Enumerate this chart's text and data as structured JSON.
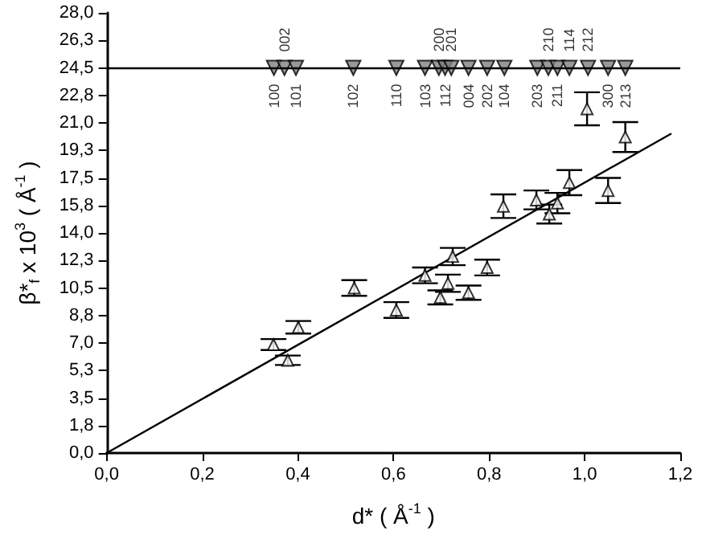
{
  "chart_data": {
    "type": "scatter",
    "xlabel": "d* ( Å$^{-1}$ )",
    "ylabel": "β*$_{f}$ x 10$^{3}$ ( Å$^{-1}$ )",
    "xlim": [
      0,
      1.2
    ],
    "xticks": [
      {
        "value": 0,
        "label": "0,0"
      },
      {
        "value": 0.2,
        "label": "0,2"
      },
      {
        "value": 0.4,
        "label": "0,4"
      },
      {
        "value": 0.6,
        "label": "0,6"
      },
      {
        "value": 0.8,
        "label": "0,8"
      },
      {
        "value": 1.0,
        "label": "1,0"
      },
      {
        "value": 1.2,
        "label": "1,2"
      }
    ],
    "ylim": [
      0,
      28
    ],
    "yticks": [
      {
        "value": 0,
        "label": "0,0"
      },
      {
        "value": 1.75,
        "label": "1,8"
      },
      {
        "value": 3.5,
        "label": "3,5"
      },
      {
        "value": 5.25,
        "label": "5,3"
      },
      {
        "value": 7,
        "label": "7,0"
      },
      {
        "value": 8.75,
        "label": "8,8"
      },
      {
        "value": 10.5,
        "label": "10,5"
      },
      {
        "value": 12.25,
        "label": "12,3"
      },
      {
        "value": 14,
        "label": "14,0"
      },
      {
        "value": 15.75,
        "label": "15,8"
      },
      {
        "value": 17.5,
        "label": "17,5"
      },
      {
        "value": 19.25,
        "label": "19,3"
      },
      {
        "value": 21,
        "label": "21,0"
      },
      {
        "value": 22.75,
        "label": "22,8"
      },
      {
        "value": 24.5,
        "label": "24,5"
      },
      {
        "value": 26.25,
        "label": "26,3"
      },
      {
        "value": 28,
        "label": "28,0"
      }
    ],
    "grid": false,
    "ref_lines": [
      {
        "axis": "y",
        "value": 24.5,
        "color": "#000000"
      }
    ],
    "annotations": [
      {
        "text": "100",
        "x": 0.35,
        "y": 24.5
      },
      {
        "text": "002",
        "x": 0.372,
        "y": 24.5
      },
      {
        "text": "101",
        "x": 0.396,
        "y": 24.5
      },
      {
        "text": "102",
        "x": 0.516,
        "y": 24.5
      },
      {
        "text": "110",
        "x": 0.606,
        "y": 24.5
      },
      {
        "text": "103",
        "x": 0.666,
        "y": 24.5
      },
      {
        "text": "200",
        "x": 0.695,
        "y": 24.5
      },
      {
        "text": "112",
        "x": 0.708,
        "y": 24.5
      },
      {
        "text": "201",
        "x": 0.721,
        "y": 24.5
      },
      {
        "text": "004",
        "x": 0.757,
        "y": 24.5
      },
      {
        "text": "202",
        "x": 0.796,
        "y": 24.5
      },
      {
        "text": "104",
        "x": 0.832,
        "y": 24.5
      },
      {
        "text": "203",
        "x": 0.901,
        "y": 24.5
      },
      {
        "text": "210",
        "x": 0.924,
        "y": 24.5
      },
      {
        "text": "211",
        "x": 0.943,
        "y": 24.5
      },
      {
        "text": "114",
        "x": 0.968,
        "y": 24.5
      },
      {
        "text": "212",
        "x": 1.007,
        "y": 24.5
      },
      {
        "text": "300",
        "x": 1.049,
        "y": 24.5
      },
      {
        "text": "213",
        "x": 1.085,
        "y": 24.5
      }
    ],
    "series": [
      {
        "marker": "triangle",
        "color": "#000000",
        "x": [
          0.349,
          0.379,
          0.401,
          0.518,
          0.606,
          0.666,
          0.698,
          0.714,
          0.724,
          0.757,
          0.796,
          0.83,
          0.899,
          0.926,
          0.943,
          0.968,
          1.005,
          1.049,
          1.085
        ],
        "values": [
          6.9,
          5.9,
          8.0,
          10.5,
          9.1,
          11.3,
          9.9,
          10.8,
          12.5,
          10.2,
          11.8,
          15.7,
          16.1,
          15.2,
          15.9,
          17.2,
          21.9,
          16.7,
          20.1
        ],
        "errors": [
          0.35,
          0.3,
          0.4,
          0.5,
          0.5,
          0.5,
          0.45,
          0.55,
          0.55,
          0.45,
          0.5,
          0.75,
          0.6,
          0.6,
          0.65,
          0.8,
          1.05,
          0.8,
          0.95
        ]
      },
      {
        "type": "line",
        "marker": "none",
        "color": "#000000",
        "x": [
          0,
          1.18
        ],
        "values": [
          0,
          20.3
        ]
      },
      {
        "marker": "triangle",
        "color": "#808080",
        "x": [
          0.35,
          0.372,
          0.396,
          0.516,
          0.606,
          0.666,
          0.695,
          0.708,
          0.721,
          0.757,
          0.796,
          0.832,
          0.901,
          0.924,
          0.943,
          0.968,
          1.007,
          1.049,
          1.085
        ],
        "values": [
          24.5,
          24.5,
          24.5,
          24.5,
          24.5,
          24.5,
          24.5,
          24.5,
          24.5,
          24.5,
          24.5,
          24.5,
          24.5,
          24.5,
          24.5,
          24.5,
          24.5,
          24.5,
          24.5
        ]
      }
    ]
  }
}
